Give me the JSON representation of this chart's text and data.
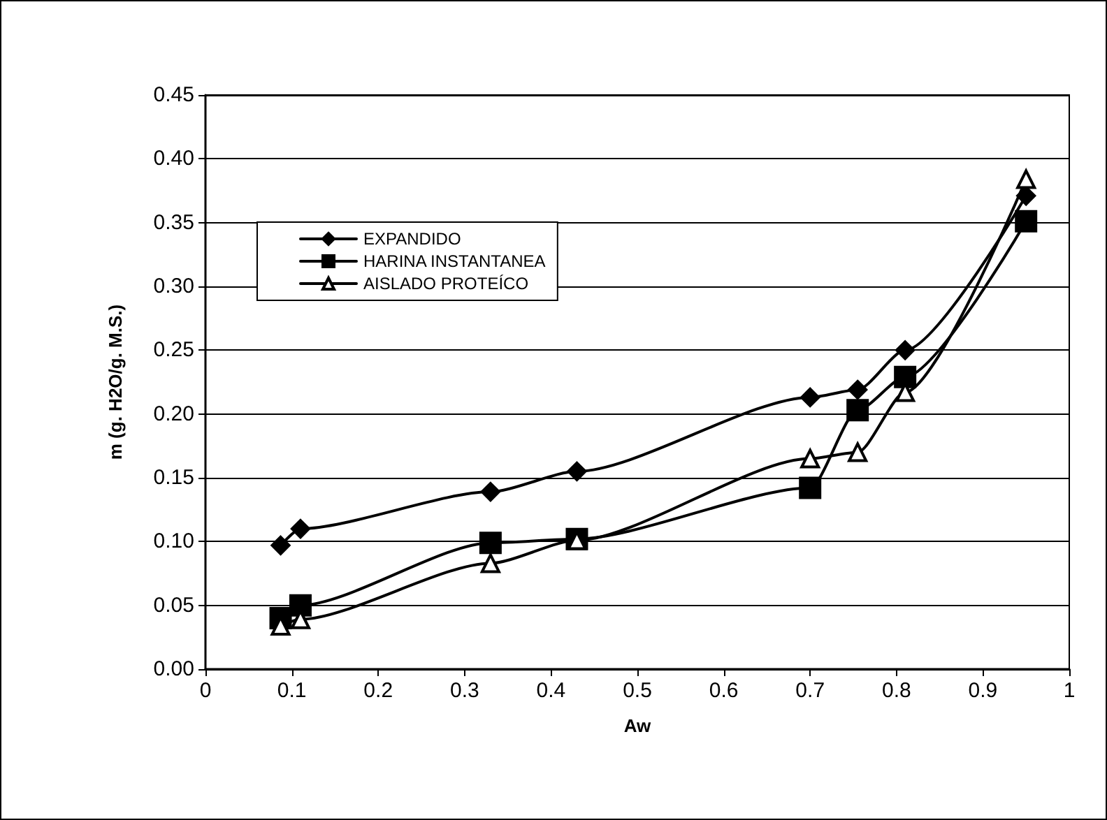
{
  "chart_data": {
    "type": "line",
    "xlabel": "Aw",
    "ylabel": "m (g. H2O/g. M.S.)",
    "x": [
      0.087,
      0.11,
      0.33,
      0.43,
      0.7,
      0.755,
      0.81,
      0.95
    ],
    "series": [
      {
        "name": "EXPANDIDO",
        "color": "#000000",
        "marker": "diamond",
        "values": [
          0.097,
          0.11,
          0.139,
          0.155,
          0.213,
          0.219,
          0.25,
          0.371
        ]
      },
      {
        "name": "HARINA INSTANTANEA",
        "color": "#000000",
        "marker": "square",
        "values": [
          0.04,
          0.05,
          0.099,
          0.102,
          0.142,
          0.203,
          0.229,
          0.351
        ]
      },
      {
        "name": "AISLADO PROTEÍCO",
        "color": "#000000",
        "marker": "triangle",
        "values": [
          0.034,
          0.039,
          0.083,
          0.101,
          0.165,
          0.17,
          0.217,
          0.384
        ]
      }
    ],
    "xlim": [
      0,
      1
    ],
    "xticks": [
      0,
      0.1,
      0.2,
      0.3,
      0.4,
      0.5,
      0.6,
      0.7,
      0.8,
      0.9,
      1
    ],
    "ylim": [
      0,
      0.45
    ],
    "yticks": [
      {
        "value": 0,
        "label": "0.00"
      },
      {
        "value": 0.05,
        "label": "0.05"
      },
      {
        "value": 0.1,
        "label": "0.10"
      },
      {
        "value": 0.15,
        "label": "0.15"
      },
      {
        "value": 0.2,
        "label": "0.20"
      },
      {
        "value": 0.25,
        "label": "0.25"
      },
      {
        "value": 0.3,
        "label": "0.30"
      },
      {
        "value": 0.35,
        "label": "0.35"
      },
      {
        "value": 0.4,
        "label": "0.40"
      },
      {
        "value": 0.45,
        "label": "0.45"
      }
    ],
    "grid": "y",
    "legend": "top left",
    "line_style": "solid"
  }
}
